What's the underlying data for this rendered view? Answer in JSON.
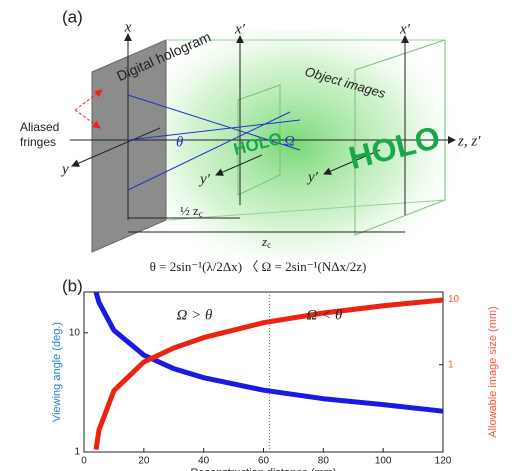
{
  "diagram": {
    "label": "(a)",
    "axis_x": "x",
    "axis_x_prime_1": "x′",
    "axis_x_prime_2": "x′",
    "axis_y": "y",
    "axis_y_prime_1": "y′",
    "axis_y_prime_2": "y′",
    "axis_z": "z, z′",
    "hologram_label": "Digital hologram",
    "objects_label": "Object images",
    "fringes_label": [
      "Aliased",
      "fringes"
    ],
    "theta": "θ",
    "omega": "Ω",
    "holo_small": "HOLO",
    "holo_large": "HOLO",
    "half_distance": "½ z",
    "half_distance_sub": "c",
    "distance": "z",
    "distance_sub": "c",
    "formula": "θ = 2sin⁻¹(λ/2Δx)  〈  Ω = 2sin⁻¹(NΔx/2z)"
  },
  "chart_data": {
    "type": "line",
    "label": "(b)",
    "x_label": "Reconstruction distance (mm)",
    "y_label": "Viewing angle (deg.)",
    "y2_label": "Allowable image size (mm)",
    "x": [
      4,
      5,
      10,
      20,
      30,
      40,
      60,
      80,
      100,
      120
    ],
    "series": [
      {
        "name": "Viewing angle",
        "color": "#1a1ae0",
        "values": [
          22,
          18,
          10.5,
          6.5,
          5,
          4.2,
          3.3,
          2.8,
          2.5,
          2.2
        ]
      },
      {
        "name": "Allowable image size",
        "color": "#ee2211",
        "axis": "y2",
        "values": [
          0.05,
          0.1,
          0.4,
          1.1,
          1.8,
          2.6,
          4.4,
          6.2,
          8,
          9.8
        ]
      }
    ],
    "xlim": [
      0,
      120
    ],
    "xticks": [
      0,
      20,
      40,
      60,
      80,
      100,
      120
    ],
    "ylim": [
      1,
      22
    ],
    "yticks": [
      1,
      10
    ],
    "y2lim": [
      0.046,
      13
    ],
    "y2ticks": [
      1,
      10
    ],
    "log_scale": true,
    "vlines": [
      62
    ],
    "annotations": [
      "Ω > θ",
      "Ω < θ"
    ],
    "y_label_color": "#2a7fd4",
    "y2_label_color": "#ff5533"
  }
}
